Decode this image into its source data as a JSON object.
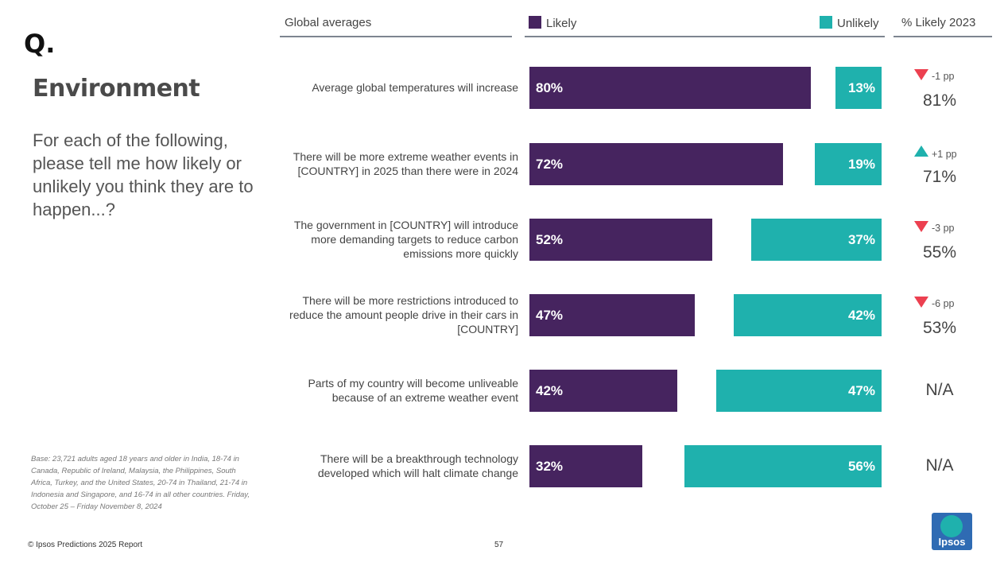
{
  "page": {
    "logo_q": "Q.",
    "title": "Environment",
    "question": "For each of the following, please tell me how likely or unlikely you think they are to happen...?",
    "base_note": "Base: 23,721 adults aged 18 years and older in India, 18-74 in Canada, Republic of Ireland, Malaysia, the Philippines, South Africa, Turkey, and the United States, 20-74 in Thailand, 21-74 in Indonesia and Singapore, and 16-74 in all other countries. Friday, October 25 – Friday November 8, 2024",
    "copyright": "© Ipsos Predictions 2025 Report",
    "page_number": "57",
    "brand_logo_text": "Ipsos"
  },
  "header": {
    "column_label": "Global averages",
    "likely_label": "Likely",
    "unlikely_label": "Unlikely",
    "prior_label": "% Likely 2023"
  },
  "colors": {
    "likely": "#46245f",
    "unlikely": "#1fb1ad",
    "decrease": "#ec4050",
    "increase": "#1fb1ad"
  },
  "chart_data": {
    "type": "bar",
    "orientation": "horizontal",
    "layout": "diverging-split",
    "title": "Global averages",
    "categories": [
      "Average global temperatures will increase",
      "There will be more extreme weather events in [COUNTRY] in 2025 than there were in 2024",
      "The government in [COUNTRY] will introduce more demanding targets to reduce carbon emissions more quickly",
      "There will be more restrictions introduced to reduce the amount people drive in their cars in [COUNTRY]",
      "Parts of my country will become unliveable because of an extreme weather event",
      "There will be a breakthrough technology developed which will halt climate change"
    ],
    "series": [
      {
        "name": "Likely",
        "values": [
          80,
          72,
          52,
          47,
          42,
          32
        ],
        "labels": [
          "80%",
          "72%",
          "52%",
          "47%",
          "42%",
          "32%"
        ]
      },
      {
        "name": "Unlikely",
        "values": [
          13,
          19,
          37,
          42,
          47,
          56
        ],
        "labels": [
          "13%",
          "19%",
          "37%",
          "42%",
          "47%",
          "56%"
        ]
      }
    ],
    "xlim": [
      0,
      100
    ],
    "prior_year": {
      "label": "% Likely 2023",
      "values": [
        "81%",
        "71%",
        "55%",
        "53%",
        "N/A",
        "N/A"
      ],
      "changes": [
        "-1 pp",
        "+1 pp",
        "-3 pp",
        "-6 pp",
        null,
        null
      ],
      "directions": [
        "down",
        "up",
        "down",
        "down",
        null,
        null
      ]
    }
  }
}
